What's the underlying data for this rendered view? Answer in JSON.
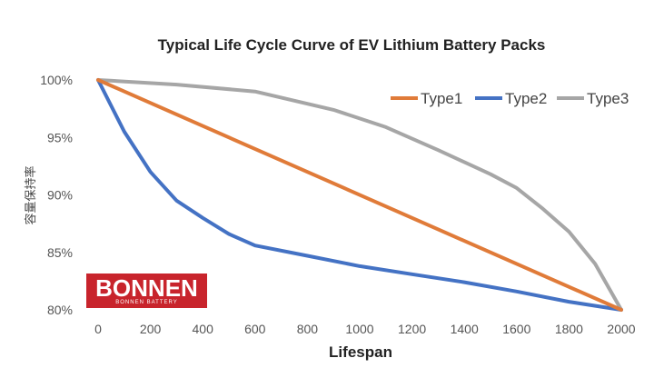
{
  "chart_data": {
    "type": "line",
    "title": "Typical Life Cycle Curve of EV Lithium Battery Packs",
    "xlabel": "Lifespan",
    "ylabel": "容量保持率",
    "xlim": [
      0,
      2000
    ],
    "ylim": [
      80,
      100
    ],
    "x_ticks": [
      "0",
      "200",
      "400",
      "600",
      "800",
      "1000",
      "1200",
      "1400",
      "1600",
      "1800",
      "2000"
    ],
    "y_ticks": [
      "80%",
      "85%",
      "90%",
      "95%",
      "100%"
    ],
    "grid": false,
    "legend_position": "top-right",
    "series": [
      {
        "name": "Type1",
        "color": "#e07b39",
        "x": [
          0,
          2000
        ],
        "y": [
          100,
          80
        ]
      },
      {
        "name": "Type2",
        "color": "#4472c4",
        "x": [
          0,
          100,
          200,
          300,
          400,
          500,
          600,
          800,
          1000,
          1200,
          1400,
          1600,
          1800,
          2000
        ],
        "y": [
          100,
          95.5,
          92,
          89.5,
          88,
          86.6,
          85.6,
          84.7,
          83.8,
          83.1,
          82.4,
          81.6,
          80.7,
          80
        ]
      },
      {
        "name": "Type3",
        "color": "#a6a6a6",
        "x": [
          0,
          300,
          600,
          900,
          1100,
          1300,
          1500,
          1600,
          1700,
          1800,
          1900,
          2000
        ],
        "y": [
          100,
          99.6,
          99,
          97.4,
          95.9,
          93.9,
          91.8,
          90.6,
          88.8,
          86.8,
          84,
          80
        ]
      }
    ]
  },
  "logo": {
    "name": "BONNEN",
    "tagline": "BONNEN BATTERY"
  }
}
